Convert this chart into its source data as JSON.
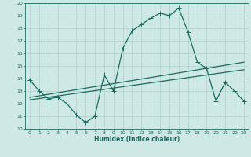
{
  "xlabel": "Humidex (Indice chaleur)",
  "ylabel": "",
  "xlim": [
    -0.5,
    23.5
  ],
  "ylim": [
    10,
    20
  ],
  "yticks": [
    10,
    11,
    12,
    13,
    14,
    15,
    16,
    17,
    18,
    19,
    20
  ],
  "xticks": [
    0,
    1,
    2,
    3,
    4,
    5,
    6,
    7,
    8,
    9,
    10,
    11,
    12,
    13,
    14,
    15,
    16,
    17,
    18,
    19,
    20,
    21,
    22,
    23
  ],
  "bg_color": "#cde8e5",
  "grid_color": "#afd0cc",
  "line_color": "#1a6b5e",
  "line1_x": [
    0,
    1,
    2,
    3,
    4,
    5,
    6,
    7,
    8,
    9,
    10,
    11,
    12,
    13,
    14,
    15,
    16,
    17,
    18,
    19,
    20,
    21,
    22,
    23
  ],
  "line1_y": [
    13.9,
    13.0,
    12.4,
    12.5,
    12.0,
    11.1,
    10.5,
    11.0,
    14.3,
    13.0,
    16.4,
    17.8,
    18.3,
    18.8,
    19.2,
    19.0,
    19.6,
    17.7,
    15.3,
    14.8,
    12.2,
    13.7,
    13.0,
    12.2
  ],
  "line2_x": [
    0,
    23
  ],
  "line2_y": [
    12.5,
    15.3
  ],
  "line3_x": [
    0,
    23
  ],
  "line3_y": [
    12.3,
    14.7
  ],
  "linewidth": 0.9,
  "markersize": 3
}
